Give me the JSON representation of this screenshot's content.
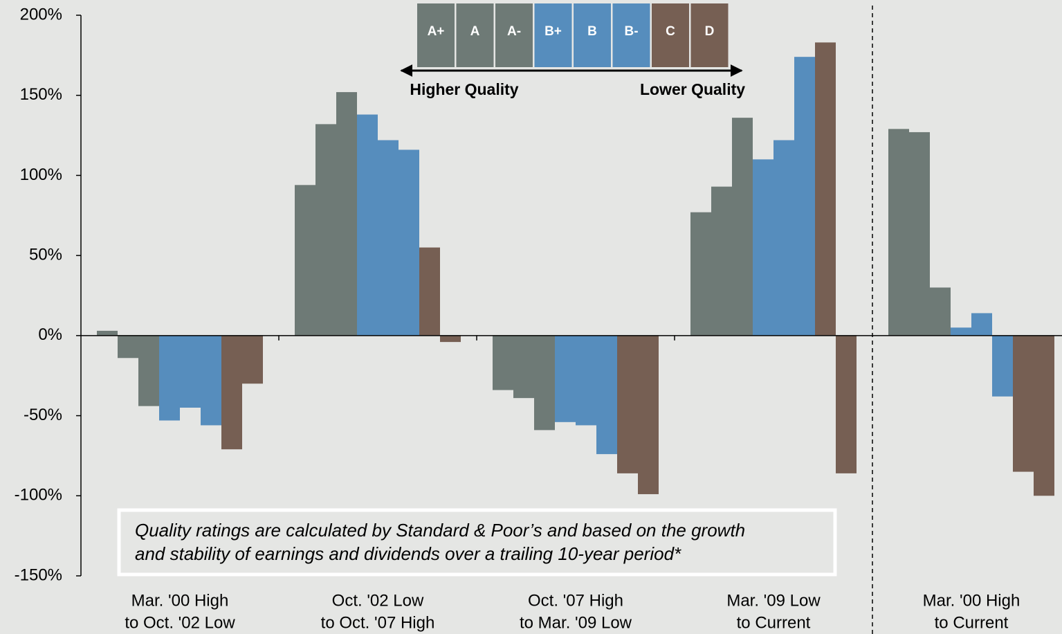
{
  "chart_data": {
    "type": "bar",
    "categories": [
      [
        "Mar. '00 High",
        "to Oct. '02 Low"
      ],
      [
        "Oct. '02 Low",
        "to Oct. '07 High"
      ],
      [
        "Oct. '07 High",
        "to Mar. '09 Low"
      ],
      [
        "Mar. '09 Low",
        "to Current"
      ],
      [
        "Mar. '00 High",
        "to Current"
      ]
    ],
    "series": [
      {
        "name": "A+",
        "color": "#6e7a76",
        "values": [
          3,
          94,
          -34,
          77,
          129
        ]
      },
      {
        "name": "A",
        "color": "#6e7a76",
        "values": [
          -14,
          132,
          -39,
          93,
          127
        ]
      },
      {
        "name": "A-",
        "color": "#6e7a76",
        "values": [
          -44,
          152,
          -59,
          136,
          30
        ]
      },
      {
        "name": "B+",
        "color": "#568dbd",
        "values": [
          -53,
          138,
          -54,
          110,
          5
        ]
      },
      {
        "name": "B",
        "color": "#568dbd",
        "values": [
          -45,
          122,
          -56,
          122,
          14
        ]
      },
      {
        "name": "B-",
        "color": "#568dbd",
        "values": [
          -56,
          116,
          -74,
          174,
          -38
        ]
      },
      {
        "name": "C",
        "color": "#765f53",
        "values": [
          -71,
          55,
          -86,
          183,
          -85
        ]
      },
      {
        "name": "D",
        "color": "#765f53",
        "values": [
          -30,
          -4,
          -99,
          -86,
          -100
        ]
      }
    ],
    "legend_high": "Higher Quality",
    "legend_low": "Lower Quality",
    "annotation": [
      "Quality ratings are calculated by Standard & Poor’s and based on the growth",
      "and stability of earnings and dividends over a trailing 10-year period*"
    ],
    "ylim": [
      -150,
      200
    ],
    "yticks": [
      {
        "value": -150,
        "label": "-150%"
      },
      {
        "value": -100,
        "label": "-100%"
      },
      {
        "value": -50,
        "label": "-50%"
      },
      {
        "value": 0,
        "label": "0%"
      },
      {
        "value": 50,
        "label": "50%"
      },
      {
        "value": 100,
        "label": "100%"
      },
      {
        "value": 150,
        "label": "150%"
      },
      {
        "value": 200,
        "label": "200%"
      }
    ],
    "grid": false
  }
}
